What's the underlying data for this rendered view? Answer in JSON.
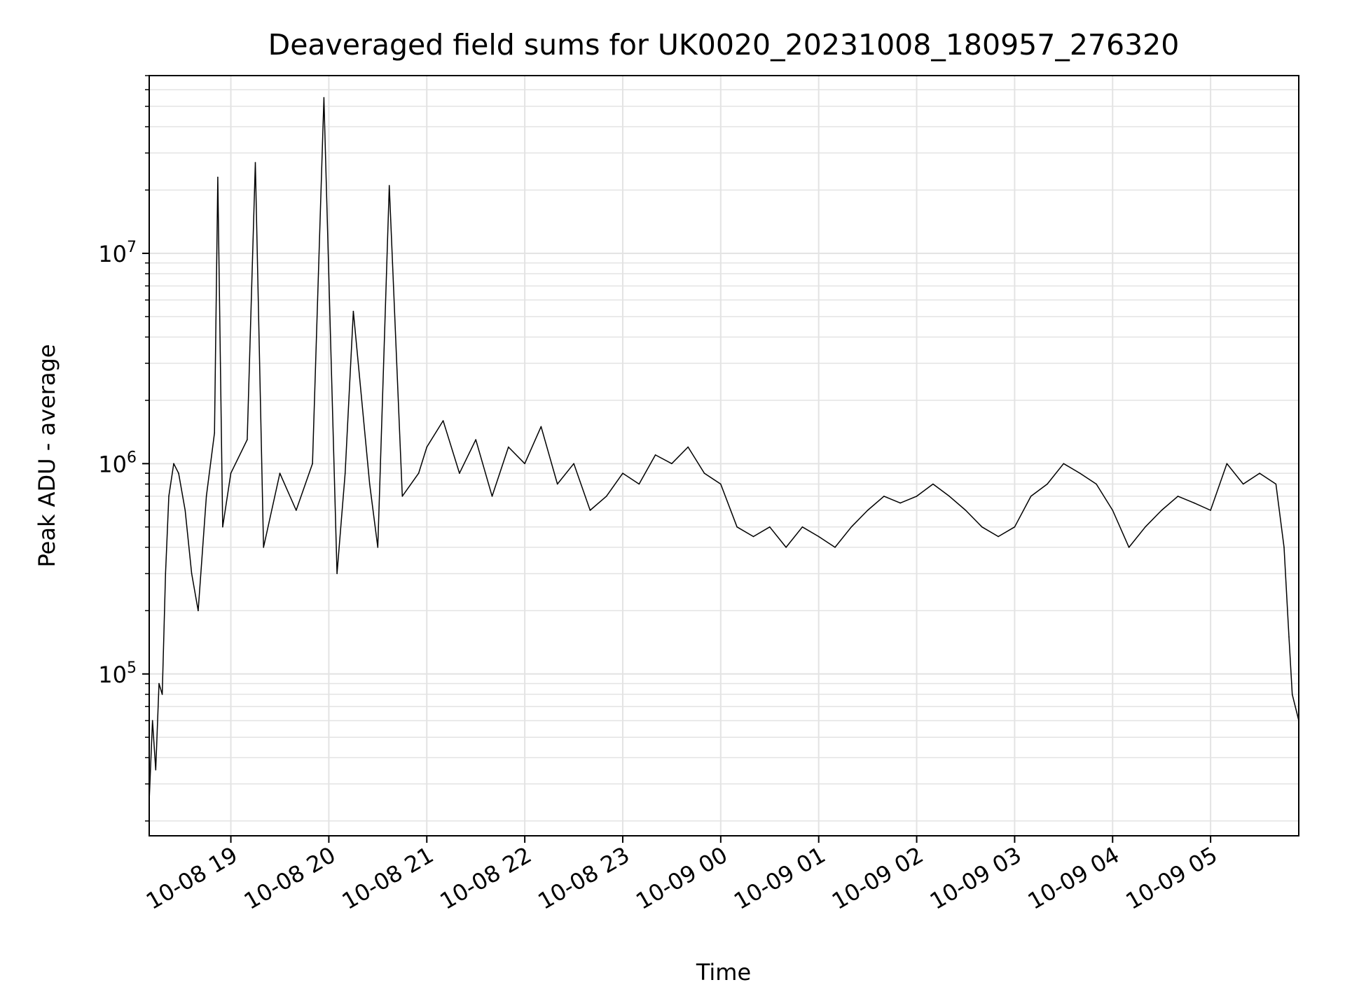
{
  "chart_data": {
    "type": "line",
    "title": "Deaveraged field sums for UK0020_20231008_180957_276320",
    "xlabel": "Time",
    "ylabel": "Peak ADU - average",
    "yscale": "log",
    "ylim": [
      17000,
      70000000
    ],
    "xlim": [
      "2023-10-08 18:10",
      "2023-10-09 05:54"
    ],
    "grid": true,
    "line_color": "#000000",
    "grid_color": "#e3e3e3",
    "x_ticks": [
      {
        "t": "2023-10-08 19:00",
        "label": "10-08 19"
      },
      {
        "t": "2023-10-08 20:00",
        "label": "10-08 20"
      },
      {
        "t": "2023-10-08 21:00",
        "label": "10-08 21"
      },
      {
        "t": "2023-10-08 22:00",
        "label": "10-08 22"
      },
      {
        "t": "2023-10-08 23:00",
        "label": "10-08 23"
      },
      {
        "t": "2023-10-09 00:00",
        "label": "10-09 00"
      },
      {
        "t": "2023-10-09 01:00",
        "label": "10-09 01"
      },
      {
        "t": "2023-10-09 02:00",
        "label": "10-09 02"
      },
      {
        "t": "2023-10-09 03:00",
        "label": "10-09 03"
      },
      {
        "t": "2023-10-09 04:00",
        "label": "10-09 04"
      },
      {
        "t": "2023-10-09 05:00",
        "label": "10-09 05"
      }
    ],
    "y_ticks": [
      {
        "value": 100000,
        "base": "10",
        "exp": "5"
      },
      {
        "value": 1000000,
        "base": "10",
        "exp": "6"
      },
      {
        "value": 10000000,
        "base": "10",
        "exp": "7"
      }
    ],
    "series": [
      {
        "points": [
          [
            "2023-10-08 18:10",
            25000
          ],
          [
            "2023-10-08 18:12",
            60000
          ],
          [
            "2023-10-08 18:14",
            35000
          ],
          [
            "2023-10-08 18:16",
            90000
          ],
          [
            "2023-10-08 18:18",
            80000
          ],
          [
            "2023-10-08 18:20",
            300000
          ],
          [
            "2023-10-08 18:22",
            700000
          ],
          [
            "2023-10-08 18:25",
            1000000
          ],
          [
            "2023-10-08 18:28",
            900000
          ],
          [
            "2023-10-08 18:32",
            600000
          ],
          [
            "2023-10-08 18:36",
            300000
          ],
          [
            "2023-10-08 18:40",
            200000
          ],
          [
            "2023-10-08 18:45",
            700000
          ],
          [
            "2023-10-08 18:50",
            1400000
          ],
          [
            "2023-10-08 18:52",
            23000000
          ],
          [
            "2023-10-08 18:55",
            500000
          ],
          [
            "2023-10-08 19:00",
            900000
          ],
          [
            "2023-10-08 19:10",
            1300000
          ],
          [
            "2023-10-08 19:15",
            27000000
          ],
          [
            "2023-10-08 19:20",
            400000
          ],
          [
            "2023-10-08 19:30",
            900000
          ],
          [
            "2023-10-08 19:40",
            600000
          ],
          [
            "2023-10-08 19:50",
            1000000
          ],
          [
            "2023-10-08 19:57",
            55000000
          ],
          [
            "2023-10-08 20:05",
            300000
          ],
          [
            "2023-10-08 20:10",
            900000
          ],
          [
            "2023-10-08 20:15",
            5300000
          ],
          [
            "2023-10-08 20:25",
            800000
          ],
          [
            "2023-10-08 20:30",
            400000
          ],
          [
            "2023-10-08 20:37",
            21000000
          ],
          [
            "2023-10-08 20:45",
            700000
          ],
          [
            "2023-10-08 20:55",
            900000
          ],
          [
            "2023-10-08 21:00",
            1200000
          ],
          [
            "2023-10-08 21:10",
            1600000
          ],
          [
            "2023-10-08 21:20",
            900000
          ],
          [
            "2023-10-08 21:30",
            1300000
          ],
          [
            "2023-10-08 21:40",
            700000
          ],
          [
            "2023-10-08 21:50",
            1200000
          ],
          [
            "2023-10-08 22:00",
            1000000
          ],
          [
            "2023-10-08 22:10",
            1500000
          ],
          [
            "2023-10-08 22:20",
            800000
          ],
          [
            "2023-10-08 22:30",
            1000000
          ],
          [
            "2023-10-08 22:40",
            600000
          ],
          [
            "2023-10-08 22:50",
            700000
          ],
          [
            "2023-10-08 23:00",
            900000
          ],
          [
            "2023-10-08 23:10",
            800000
          ],
          [
            "2023-10-08 23:20",
            1100000
          ],
          [
            "2023-10-08 23:30",
            1000000
          ],
          [
            "2023-10-08 23:40",
            1200000
          ],
          [
            "2023-10-08 23:50",
            900000
          ],
          [
            "2023-10-09 00:00",
            800000
          ],
          [
            "2023-10-09 00:10",
            500000
          ],
          [
            "2023-10-09 00:20",
            450000
          ],
          [
            "2023-10-09 00:30",
            500000
          ],
          [
            "2023-10-09 00:40",
            400000
          ],
          [
            "2023-10-09 00:50",
            500000
          ],
          [
            "2023-10-09 01:00",
            450000
          ],
          [
            "2023-10-09 01:10",
            400000
          ],
          [
            "2023-10-09 01:20",
            500000
          ],
          [
            "2023-10-09 01:30",
            600000
          ],
          [
            "2023-10-09 01:40",
            700000
          ],
          [
            "2023-10-09 01:50",
            650000
          ],
          [
            "2023-10-09 02:00",
            700000
          ],
          [
            "2023-10-09 02:10",
            800000
          ],
          [
            "2023-10-09 02:20",
            700000
          ],
          [
            "2023-10-09 02:30",
            600000
          ],
          [
            "2023-10-09 02:40",
            500000
          ],
          [
            "2023-10-09 02:50",
            450000
          ],
          [
            "2023-10-09 03:00",
            500000
          ],
          [
            "2023-10-09 03:10",
            700000
          ],
          [
            "2023-10-09 03:20",
            800000
          ],
          [
            "2023-10-09 03:30",
            1000000
          ],
          [
            "2023-10-09 03:40",
            900000
          ],
          [
            "2023-10-09 03:50",
            800000
          ],
          [
            "2023-10-09 04:00",
            600000
          ],
          [
            "2023-10-09 04:10",
            400000
          ],
          [
            "2023-10-09 04:20",
            500000
          ],
          [
            "2023-10-09 04:30",
            600000
          ],
          [
            "2023-10-09 04:40",
            700000
          ],
          [
            "2023-10-09 04:50",
            650000
          ],
          [
            "2023-10-09 05:00",
            600000
          ],
          [
            "2023-10-09 05:10",
            1000000
          ],
          [
            "2023-10-09 05:20",
            800000
          ],
          [
            "2023-10-09 05:30",
            900000
          ],
          [
            "2023-10-09 05:40",
            800000
          ],
          [
            "2023-10-09 05:45",
            400000
          ],
          [
            "2023-10-09 05:48",
            150000
          ],
          [
            "2023-10-09 05:50",
            80000
          ],
          [
            "2023-10-09 05:54",
            60000
          ]
        ]
      }
    ]
  }
}
